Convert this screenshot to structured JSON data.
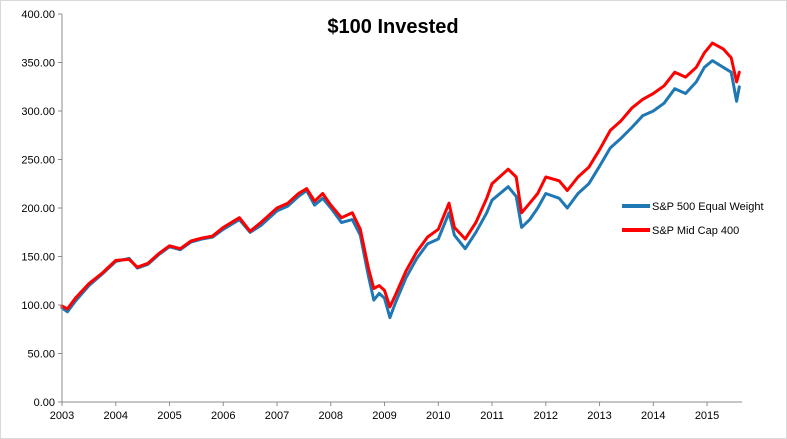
{
  "chart_data": {
    "type": "line",
    "title": "$100 Invested",
    "xlabel": "",
    "ylabel": "",
    "ylim": [
      0,
      400
    ],
    "yticks": [
      "0.00",
      "50.00",
      "100.00",
      "150.00",
      "200.00",
      "250.00",
      "300.00",
      "350.00",
      "400.00"
    ],
    "xticks": [
      "2003",
      "2004",
      "2005",
      "2006",
      "2007",
      "2008",
      "2009",
      "2010",
      "2011",
      "2012",
      "2013",
      "2014",
      "2015"
    ],
    "xlim": [
      2003.0,
      2015.65
    ],
    "grid": false,
    "legend_position": "right",
    "x": [
      2003.0,
      2003.1,
      2003.25,
      2003.5,
      2003.75,
      2004.0,
      2004.25,
      2004.4,
      2004.6,
      2004.8,
      2005.0,
      2005.2,
      2005.4,
      2005.6,
      2005.8,
      2006.0,
      2006.3,
      2006.5,
      2006.7,
      2007.0,
      2007.2,
      2007.4,
      2007.55,
      2007.7,
      2007.85,
      2008.0,
      2008.2,
      2008.4,
      2008.55,
      2008.7,
      2008.8,
      2008.9,
      2009.0,
      2009.1,
      2009.2,
      2009.4,
      2009.6,
      2009.8,
      2010.0,
      2010.2,
      2010.3,
      2010.5,
      2010.7,
      2010.9,
      2011.0,
      2011.3,
      2011.45,
      2011.55,
      2011.7,
      2011.85,
      2012.0,
      2012.25,
      2012.4,
      2012.6,
      2012.8,
      2013.0,
      2013.2,
      2013.4,
      2013.6,
      2013.8,
      2014.0,
      2014.2,
      2014.4,
      2014.6,
      2014.8,
      2014.95,
      2015.1,
      2015.3,
      2015.45,
      2015.55,
      2015.6
    ],
    "series": [
      {
        "name": "S&P 500 Equal Weight",
        "color": "#1f77b4",
        "values": [
          97,
          93,
          104,
          120,
          132,
          145,
          148,
          138,
          142,
          152,
          160,
          157,
          165,
          168,
          170,
          178,
          188,
          175,
          182,
          197,
          202,
          212,
          218,
          203,
          210,
          200,
          185,
          188,
          172,
          130,
          105,
          112,
          107,
          87,
          102,
          128,
          148,
          163,
          168,
          195,
          172,
          158,
          175,
          195,
          208,
          222,
          212,
          180,
          188,
          200,
          215,
          210,
          200,
          215,
          225,
          243,
          262,
          272,
          283,
          295,
          300,
          308,
          323,
          318,
          330,
          345,
          352,
          345,
          340,
          310,
          325
        ]
      },
      {
        "name": "S&P Mid Cap 400",
        "color": "#ff0000",
        "values": [
          99,
          96,
          107,
          122,
          133,
          146,
          147,
          139,
          143,
          153,
          161,
          158,
          166,
          169,
          171,
          180,
          190,
          176,
          185,
          200,
          205,
          215,
          220,
          207,
          215,
          203,
          190,
          195,
          178,
          138,
          117,
          120,
          115,
          98,
          110,
          135,
          155,
          170,
          178,
          205,
          180,
          168,
          185,
          210,
          225,
          240,
          232,
          195,
          205,
          215,
          232,
          228,
          218,
          232,
          242,
          260,
          280,
          290,
          303,
          312,
          318,
          326,
          340,
          335,
          345,
          360,
          370,
          364,
          355,
          330,
          340
        ]
      }
    ]
  }
}
